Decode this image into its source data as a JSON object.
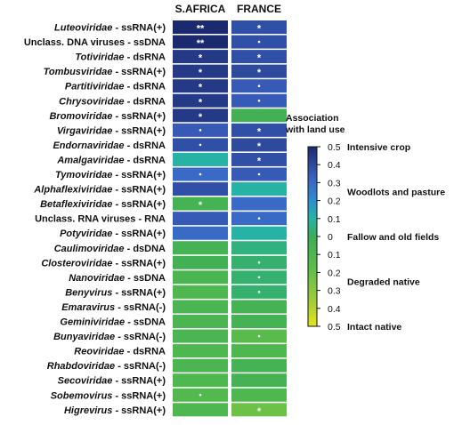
{
  "chart_data": {
    "type": "heatmap",
    "columns": [
      "S.AFRICA",
      "FRANCE"
    ],
    "rows": [
      {
        "family": "Luteoviridae",
        "genome": " - ssRNA(+)",
        "italic": true,
        "values": [
          0.5,
          0.38
        ],
        "marks": [
          "**",
          "*"
        ]
      },
      {
        "family": "Unclass. DNA viruses",
        "genome": " - ssDNA",
        "italic": false,
        "values": [
          0.5,
          0.38
        ],
        "marks": [
          "**",
          "·"
        ]
      },
      {
        "family": "Totiviridae",
        "genome": " - dsRNA",
        "italic": true,
        "values": [
          0.45,
          0.38
        ],
        "marks": [
          "*",
          "*"
        ]
      },
      {
        "family": "Tombusviridae",
        "genome": " - ssRNA(+)",
        "italic": true,
        "values": [
          0.45,
          0.4
        ],
        "marks": [
          "*",
          "*"
        ]
      },
      {
        "family": "Partitiviridae",
        "genome": " - dsRNA",
        "italic": true,
        "values": [
          0.45,
          0.35
        ],
        "marks": [
          "*",
          "·"
        ]
      },
      {
        "family": "Chrysoviridae",
        "genome": " - dsRNA",
        "italic": true,
        "values": [
          0.45,
          0.35
        ],
        "marks": [
          "*",
          "·"
        ]
      },
      {
        "family": "Bromoviridae",
        "genome": " - ssRNA(+)",
        "italic": true,
        "values": [
          0.45,
          -0.03
        ],
        "marks": [
          "*",
          ""
        ]
      },
      {
        "family": "Virgaviridae",
        "genome": " - ssRNA(+)",
        "italic": true,
        "values": [
          0.35,
          0.38
        ],
        "marks": [
          "·",
          "*"
        ]
      },
      {
        "family": "Endornaviridae",
        "genome": " - dsRNA",
        "italic": true,
        "values": [
          0.38,
          0.4
        ],
        "marks": [
          "·",
          "*"
        ]
      },
      {
        "family": "Amalgaviridae",
        "genome": " - dsRNA",
        "italic": true,
        "values": [
          0.1,
          0.38
        ],
        "marks": [
          "",
          "*"
        ]
      },
      {
        "family": "Tymoviridae",
        "genome": " - ssRNA(+)",
        "italic": true,
        "values": [
          0.3,
          0.35
        ],
        "marks": [
          "·",
          "·"
        ]
      },
      {
        "family": "Alphaflexiviridae",
        "genome": " - ssRNA(+)",
        "italic": true,
        "values": [
          0.38,
          0.1
        ],
        "marks": [
          "",
          ""
        ]
      },
      {
        "family": "Betaflexiviridae",
        "genome": " - ssRNA(+)",
        "italic": true,
        "values": [
          -0.05,
          0.3
        ],
        "marks": [
          "*",
          ""
        ]
      },
      {
        "family": "Unclass. RNA viruses",
        "genome": " - RNA",
        "italic": false,
        "values": [
          0.35,
          0.3
        ],
        "marks": [
          "",
          "·"
        ]
      },
      {
        "family": "Potyviridae",
        "genome": " - ssRNA(+)",
        "italic": true,
        "values": [
          0.3,
          0.1
        ],
        "marks": [
          "",
          ""
        ]
      },
      {
        "family": "Caulimoviridae",
        "genome": " - dsDNA",
        "italic": true,
        "values": [
          -0.05,
          0.05
        ],
        "marks": [
          "",
          ""
        ]
      },
      {
        "family": "Closteroviridae",
        "genome": " - ssRNA(+)",
        "italic": true,
        "values": [
          -0.03,
          0.03
        ],
        "marks": [
          "",
          "·"
        ]
      },
      {
        "family": "Nanoviridae",
        "genome": " - ssDNA",
        "italic": true,
        "values": [
          -0.08,
          0.03
        ],
        "marks": [
          "",
          "·"
        ]
      },
      {
        "family": "Benyvirus",
        "genome": " - ssRNA(+)",
        "italic": true,
        "values": [
          -0.1,
          0.03
        ],
        "marks": [
          "",
          "·"
        ]
      },
      {
        "family": "Emaravirus",
        "genome": " - ssRNA(-)",
        "italic": true,
        "values": [
          -0.08,
          -0.05
        ],
        "marks": [
          "",
          ""
        ]
      },
      {
        "family": "Geminiviridae",
        "genome": " - ssDNA",
        "italic": true,
        "values": [
          -0.08,
          -0.05
        ],
        "marks": [
          "",
          ""
        ]
      },
      {
        "family": "Bunyaviridae",
        "genome": " - ssRNA(-)",
        "italic": true,
        "values": [
          -0.08,
          -0.15
        ],
        "marks": [
          "",
          "·"
        ]
      },
      {
        "family": "Reoviridae",
        "genome": " - dsRNA",
        "italic": true,
        "values": [
          -0.1,
          -0.1
        ],
        "marks": [
          "",
          ""
        ]
      },
      {
        "family": "Rhabdoviridae",
        "genome": " - ssRNA(-)",
        "italic": true,
        "values": [
          -0.08,
          -0.05
        ],
        "marks": [
          "",
          ""
        ]
      },
      {
        "family": "Secoviridae",
        "genome": " - ssRNA(+)",
        "italic": true,
        "values": [
          -0.1,
          -0.05
        ],
        "marks": [
          "",
          ""
        ]
      },
      {
        "family": "Sobemovirus",
        "genome": " - ssRNA(+)",
        "italic": true,
        "values": [
          -0.12,
          -0.1
        ],
        "marks": [
          "·",
          ""
        ]
      },
      {
        "family": "Higrevirus",
        "genome": " - ssRNA(+)",
        "italic": true,
        "values": [
          -0.1,
          -0.22
        ],
        "marks": [
          "",
          "*"
        ]
      }
    ],
    "legend": {
      "title_lines": [
        "Association",
        "with land use"
      ],
      "range": [
        -0.5,
        0.5
      ],
      "ticks": [
        {
          "value": 0.5,
          "label": "0.5"
        },
        {
          "value": 0.4,
          "label": "0.4"
        },
        {
          "value": 0.3,
          "label": "0.3"
        },
        {
          "value": 0.2,
          "label": "0.2"
        },
        {
          "value": 0.1,
          "label": "0.1"
        },
        {
          "value": 0.0,
          "label": "0"
        },
        {
          "value": -0.1,
          "label": "0.1"
        },
        {
          "value": -0.2,
          "label": "0.2"
        },
        {
          "value": -0.3,
          "label": "0.3"
        },
        {
          "value": -0.4,
          "label": "0.4"
        },
        {
          "value": -0.5,
          "label": "0.5"
        }
      ],
      "categories": [
        {
          "label": "Intensive crop",
          "at": 0.5
        },
        {
          "label": "Woodlots and pasture",
          "at": 0.25
        },
        {
          "label": "Fallow and old fields",
          "at": 0.0
        },
        {
          "label": "Degraded native",
          "at": -0.25
        },
        {
          "label": "Intact native",
          "at": -0.5
        }
      ],
      "colors": [
        {
          "t": 0.0,
          "hex": "#e6e619"
        },
        {
          "t": 0.15,
          "hex": "#9ccb3b"
        },
        {
          "t": 0.32,
          "hex": "#5ebe4a"
        },
        {
          "t": 0.5,
          "hex": "#3cae57"
        },
        {
          "t": 0.6,
          "hex": "#26b3a5"
        },
        {
          "t": 0.7,
          "hex": "#2d8ed0"
        },
        {
          "t": 0.82,
          "hex": "#3b63c3"
        },
        {
          "t": 1.0,
          "hex": "#1b2a6e"
        }
      ]
    }
  }
}
